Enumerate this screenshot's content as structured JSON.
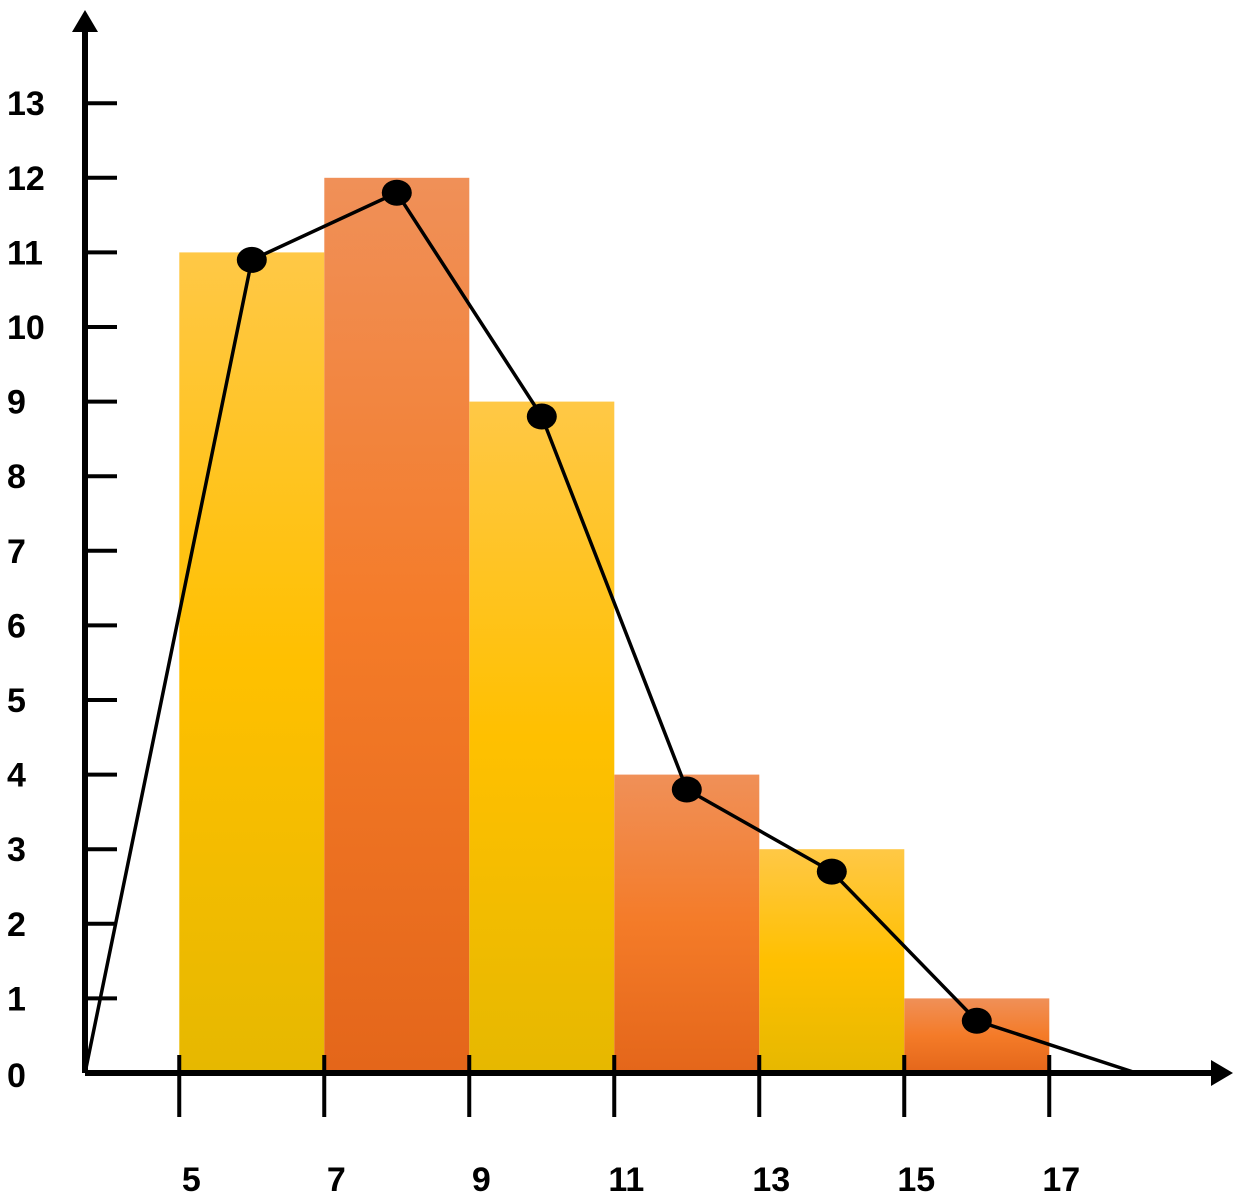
{
  "chart_data": {
    "type": "bar",
    "subtype": "histogram-with-frequency-polygon",
    "title": "",
    "xlabel": "",
    "ylabel": "",
    "x_ticks": [
      5,
      7,
      9,
      11,
      13,
      15,
      17
    ],
    "y_ticks": [
      0,
      1,
      2,
      3,
      4,
      5,
      6,
      7,
      8,
      9,
      10,
      11,
      12,
      13
    ],
    "xlim": [
      3.7,
      19.5
    ],
    "ylim": [
      0,
      14.2
    ],
    "grid": false,
    "legend": "none",
    "bins": [
      {
        "from": 5,
        "to": 7,
        "value": 11
      },
      {
        "from": 7,
        "to": 9,
        "value": 12
      },
      {
        "from": 9,
        "to": 11,
        "value": 9
      },
      {
        "from": 11,
        "to": 13,
        "value": 4
      },
      {
        "from": 13,
        "to": 15,
        "value": 3
      },
      {
        "from": 15,
        "to": 17,
        "value": 1
      }
    ],
    "polygon": {
      "x": [
        3.7,
        6,
        8,
        10,
        12,
        14,
        16,
        18.2
      ],
      "y": [
        0,
        10.9,
        11.8,
        8.8,
        3.8,
        2.7,
        0.7,
        0
      ],
      "markers": [
        false,
        true,
        true,
        true,
        true,
        true,
        true,
        false
      ]
    },
    "colors": {
      "bar_fill_a": "#FFC000",
      "bar_fill_a_top": "#FFC846",
      "bar_fill_a_bottom": "#E6B800",
      "bar_fill_b": "#F47B28",
      "bar_fill_b_top": "#F09058",
      "bar_fill_b_bottom": "#E4661A",
      "axis": "#000000",
      "polygon_line": "#000000",
      "marker": "#000000"
    }
  }
}
